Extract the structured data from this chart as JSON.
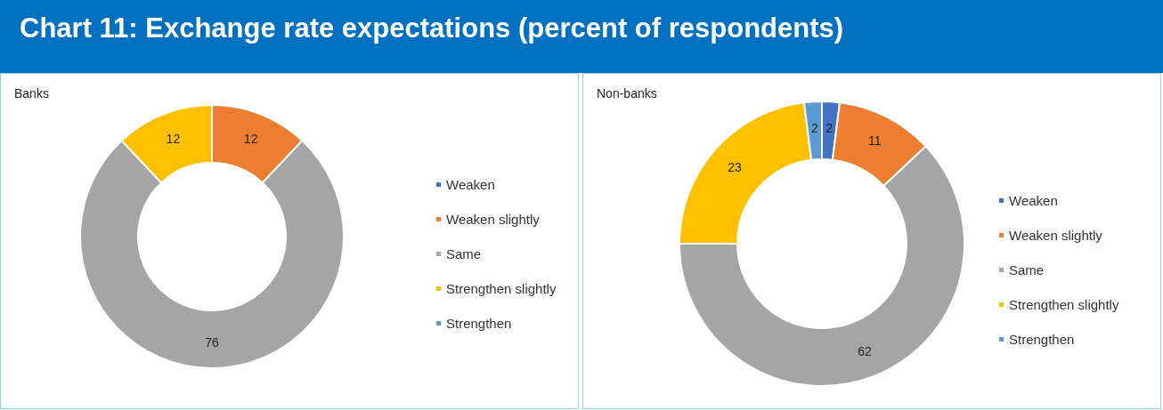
{
  "chart_data": [
    {
      "type": "donut",
      "title": "Chart 11: Exchange rate expectations (percent of respondents)",
      "subtitle": "Banks",
      "categories": [
        "Weaken",
        "Weaken slightly",
        "Same",
        "Strengthen slightly",
        "Strengthen"
      ],
      "values": [
        0,
        12,
        76,
        12,
        0
      ],
      "colors": [
        "#4472c4",
        "#ed7d31",
        "#a5a5a5",
        "#ffc000",
        "#5b9bd5"
      ],
      "value_labels": [
        null,
        "12",
        "76",
        "12",
        null
      ],
      "legend": "right"
    },
    {
      "type": "donut",
      "subtitle": "Non-banks",
      "categories": [
        "Weaken",
        "Weaken slightly",
        "Same",
        "Strengthen slightly",
        "Strengthen"
      ],
      "values": [
        2,
        11,
        62,
        23,
        2
      ],
      "colors": [
        "#4472c4",
        "#ed7d31",
        "#a5a5a5",
        "#ffc000",
        "#5b9bd5"
      ],
      "value_labels": [
        "2",
        "11",
        "62",
        "23",
        "2"
      ],
      "legend": "right"
    }
  ]
}
